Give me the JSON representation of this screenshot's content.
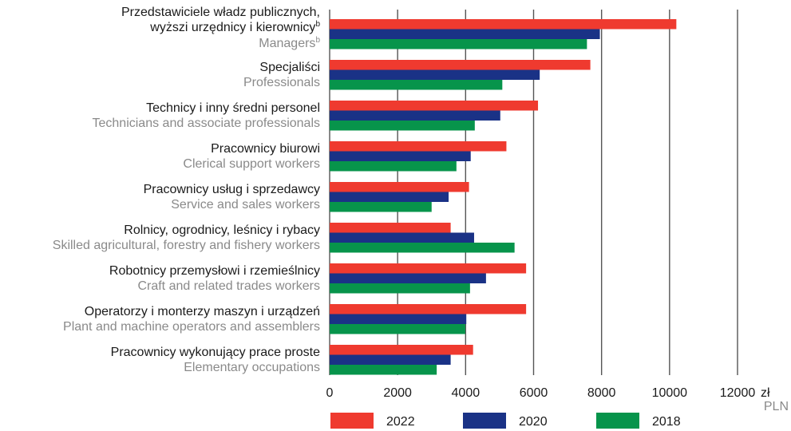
{
  "chart_data": {
    "type": "bar",
    "orientation": "horizontal",
    "categories": [
      {
        "pl": "Przedstawiciele władz publicznych,",
        "pl2": "wyższi urzędnicy i kierownicy",
        "pl2_sup": "b",
        "en": "Managers",
        "en_sup": "b"
      },
      {
        "pl": "Specjaliści",
        "en": "Professionals"
      },
      {
        "pl": "Technicy i inny średni personel",
        "en": "Technicians and associate professionals"
      },
      {
        "pl": "Pracownicy biurowi",
        "en": "Clerical support workers"
      },
      {
        "pl": "Pracownicy usług i sprzedawcy",
        "en": "Service and sales workers"
      },
      {
        "pl": "Rolnicy, ogrodnicy, leśnicy i rybacy",
        "en": "Skilled agricultural, forestry and fishery workers"
      },
      {
        "pl": "Robotnicy przemysłowi i rzemieślnicy",
        "en": "Craft and related trades workers"
      },
      {
        "pl": "Operatorzy i monterzy maszyn i urządzeń",
        "en": "Plant and machine operators and assemblers"
      },
      {
        "pl": "Pracownicy wykonujący prace proste",
        "en": "Elementary occupations"
      }
    ],
    "series": [
      {
        "name": "2022",
        "color": "#ef3a2f",
        "values": [
          10200,
          7670,
          6130,
          5200,
          4100,
          3560,
          5780,
          5780,
          4220
        ]
      },
      {
        "name": "2020",
        "color": "#1a3286",
        "values": [
          7950,
          6180,
          5020,
          4150,
          3500,
          4250,
          4600,
          4020,
          3560
        ]
      },
      {
        "name": "2018",
        "color": "#07944b",
        "values": [
          7570,
          5080,
          4270,
          3730,
          3000,
          5440,
          4130,
          3990,
          3150
        ]
      }
    ],
    "xlim": [
      0,
      12000
    ],
    "xticks": [
      "0",
      "2000",
      "4000",
      "6000",
      "8000",
      "10000",
      "12000"
    ],
    "xunit_pl": "zł",
    "xunit_en": "PLN",
    "grid": true,
    "legend_position": "bottom"
  }
}
